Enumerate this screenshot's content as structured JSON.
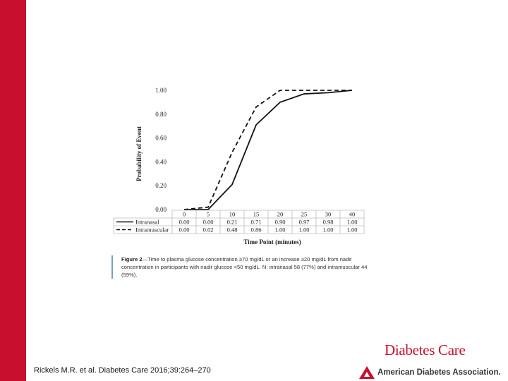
{
  "chart_data": {
    "type": "line",
    "xlabel": "Time Point (minutes)",
    "ylabel": "Probability of Event",
    "ylim": [
      0,
      1
    ],
    "yticks": [
      "0.00",
      "0.20",
      "0.40",
      "0.60",
      "0.80",
      "1.00"
    ],
    "x": [
      "0",
      "5",
      "10",
      "15",
      "20",
      "25",
      "30",
      "40"
    ],
    "series": [
      {
        "name": "Intranasal",
        "style": "solid",
        "values": [
          0.0,
          0.0,
          0.21,
          0.71,
          0.9,
          0.97,
          0.98,
          1.0
        ],
        "labels": [
          "0.00",
          "0.00",
          "0.21",
          "0.71",
          "0.90",
          "0.97",
          "0.98",
          "1.00"
        ]
      },
      {
        "name": "Intramuscular",
        "style": "dashed",
        "values": [
          0.0,
          0.02,
          0.48,
          0.86,
          1.0,
          1.0,
          1.0,
          1.0
        ],
        "labels": [
          "0.00",
          "0.02",
          "0.48",
          "0.86",
          "1.00",
          "1.00",
          "1.00",
          "1.00"
        ]
      }
    ]
  },
  "caption": {
    "label": "Figure 2",
    "text": "—Time to plasma glucose concentration ≥70 mg/dL or an increase ≥20 mg/dL from nadir concentration in participants with nadir glucose <50 mg/dL. N: intranasal 58 (77%) and intramuscular 44 (59%)."
  },
  "citation": "Rickels M.R. et al. Diabetes Care 2016;39:264–270",
  "journal_logo": "Diabetes Care",
  "association_logo": "American Diabetes Association.",
  "colors": {
    "brand_red": "#c8102e",
    "caption_rule": "#7a9cc6"
  }
}
